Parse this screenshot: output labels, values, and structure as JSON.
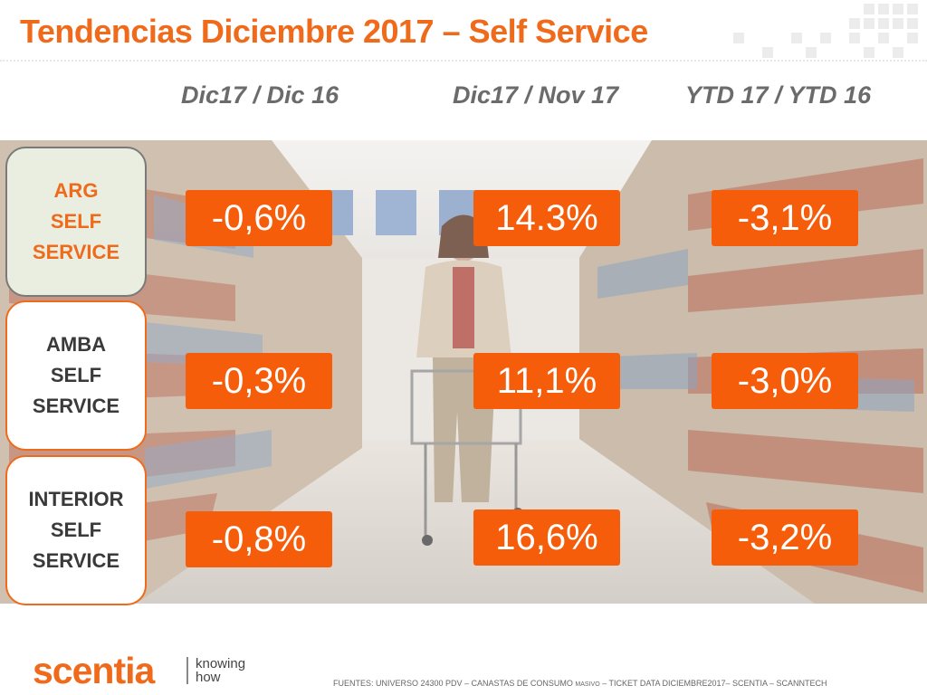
{
  "title": "Tendencias Diciembre 2017 – Self Service",
  "columns": [
    "Dic17 / Dic 16",
    "Dic17 / Nov 17",
    "YTD 17 / YTD 16"
  ],
  "rows": [
    {
      "label": "ARG\nSELF\nSERVICE",
      "values": [
        "-0,6%",
        "14.3%",
        "-3,1%"
      ]
    },
    {
      "label": "AMBA\nSELF\nSERVICE",
      "values": [
        "-0,3%",
        "11,1%",
        "-3,0%"
      ]
    },
    {
      "label": "INTERIOR\nSELF\nSERVICE",
      "values": [
        "-0,8%",
        "16,6%",
        "-3,2%"
      ]
    }
  ],
  "footer": {
    "logo": "scentia",
    "tagline": "knowing\nhow",
    "sources_pre": "FUENTES: UNIVERSO 24300 PDV – CANASTAS DE CONSUMO ",
    "sources_small": "MASIVO",
    "sources_post": " – TICKET DATA DICIEMBRE2017– SCENTIA – SCANNTECH"
  },
  "colors": {
    "accent": "#ef6a1a",
    "value_bg": "#f55d0b",
    "header_gray": "#6b6b6b"
  }
}
